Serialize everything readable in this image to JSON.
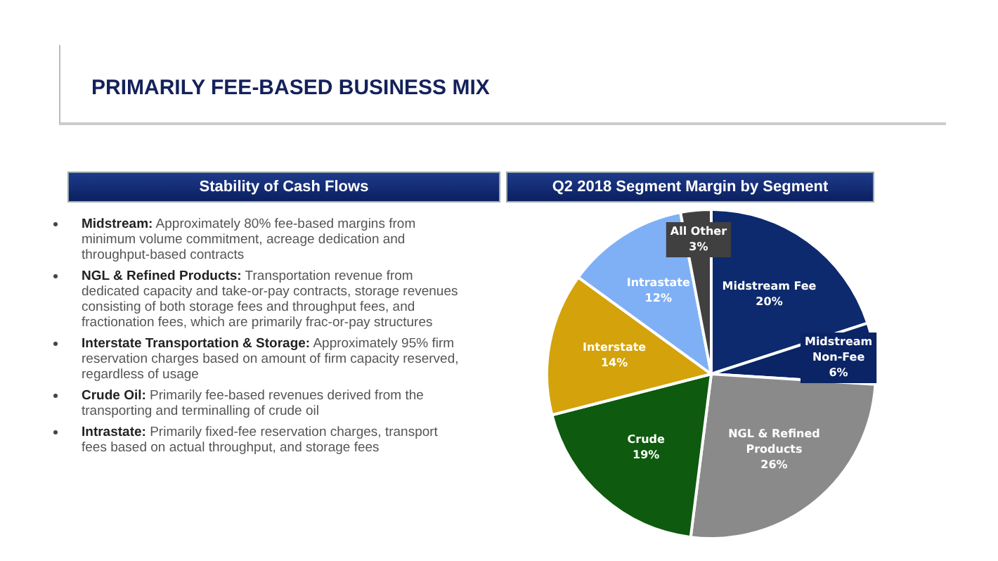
{
  "chart_data": {
    "type": "pie",
    "title": "PRIMARILY FEE-BASED BUSINESS MIX",
    "subtitle": "Q2 2018 Segment Margin by Segment",
    "categories": [
      "Midstream Fee",
      "Midstream Non-Fee",
      "NGL & Refined Products",
      "Crude",
      "Interstate",
      "Intrastate",
      "All Other"
    ],
    "values": [
      20,
      6,
      26,
      19,
      14,
      12,
      3
    ],
    "value_labels": [
      "20%",
      "6%",
      "26%",
      "19%",
      "14%",
      "12%",
      "3%"
    ],
    "colors": [
      "#0d2a6e",
      "#0a2465",
      "#8a8a8a",
      "#0e5a0e",
      "#d4a20a",
      "#7fb0f5",
      "#404040"
    ],
    "legend": false,
    "annotations": [
      "Stability of Cash Flows",
      "Midstream: Approximately 80% fee-based margins from minimum volume commitment, acreage dedication and throughput-based contracts",
      "NGL & Refined Products: Transportation revenue from dedicated capacity and take-or-pay contracts, storage revenues consisting of both storage fees and throughput fees, and fractionation fees, which are primarily frac-or-pay structures",
      "Interstate Transportation & Storage: Approximately 95% firm reservation charges based on amount of firm capacity reserved, regardless of usage",
      "Crude Oil: Primarily fee-based revenues derived from the transporting and terminalling of crude oil",
      "Intrastate: Primarily fixed-fee reservation charges, transport fees based on actual throughput, and storage fees"
    ]
  }
}
